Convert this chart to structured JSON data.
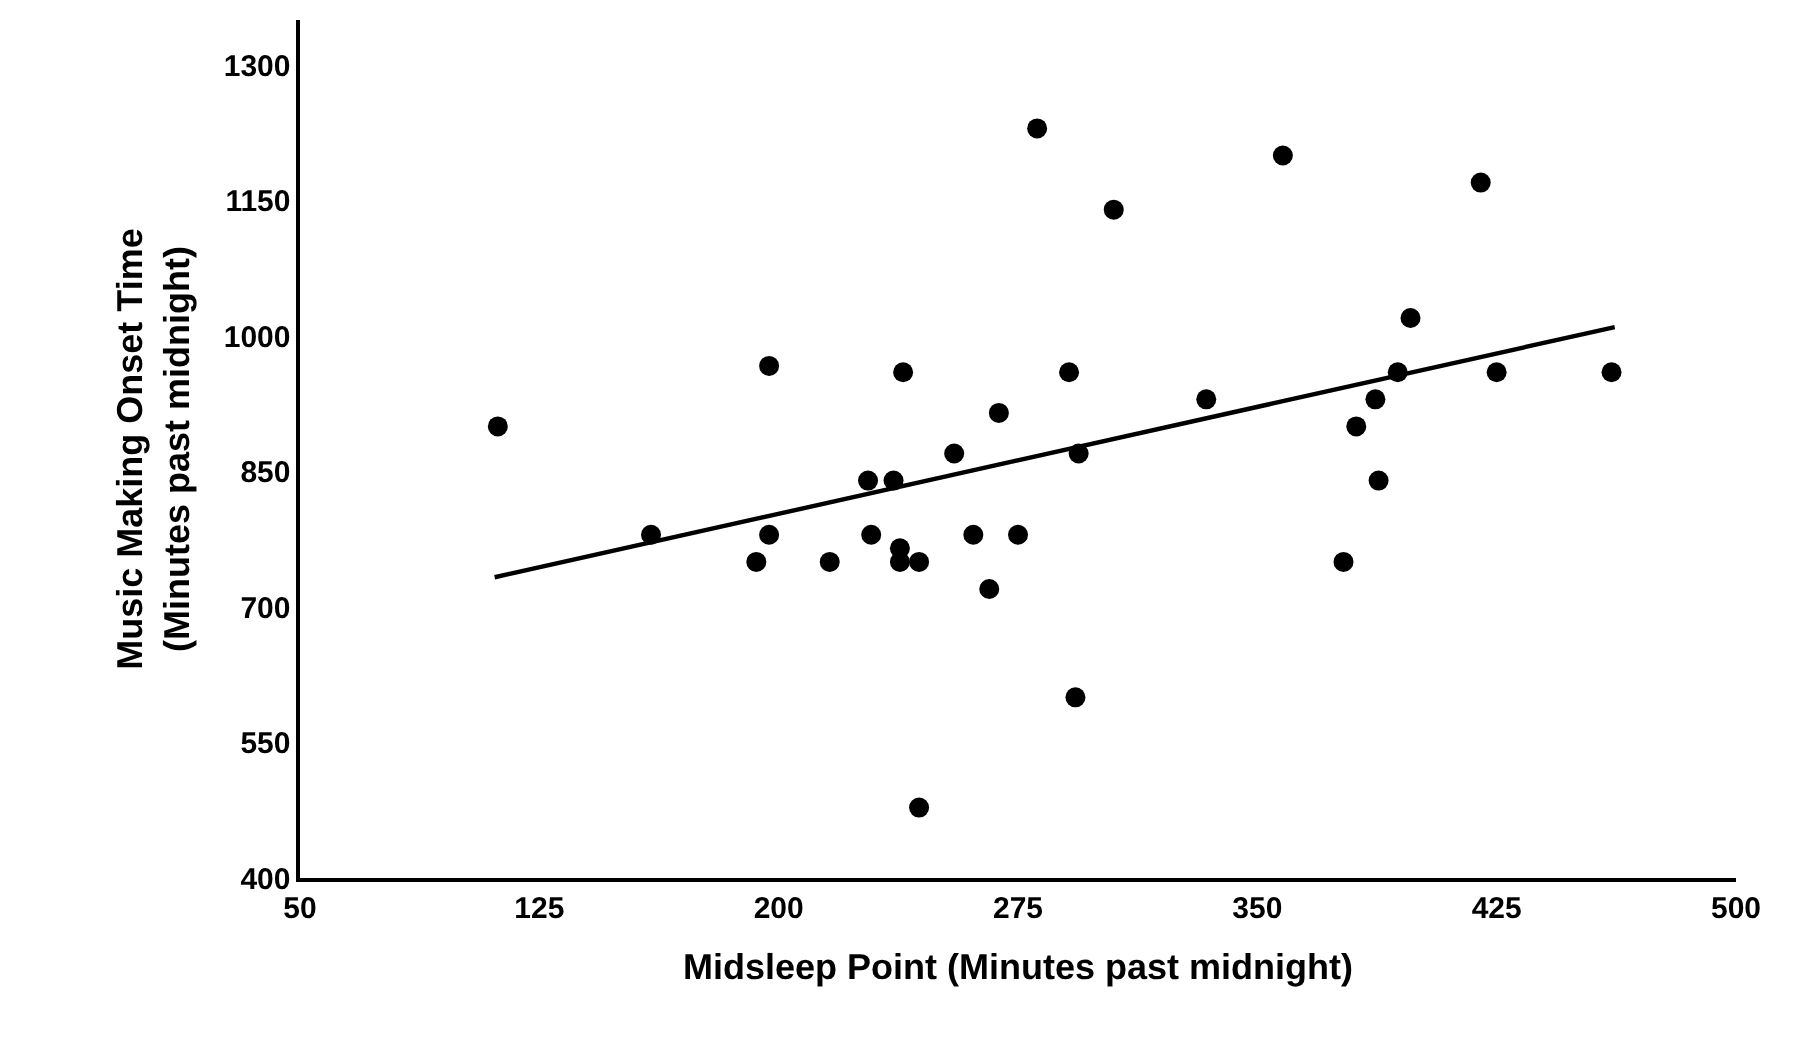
{
  "chart_data": {
    "type": "scatter",
    "xlabel": "Midsleep Point (Minutes past midnight)",
    "ylabel": "Music Making Onset Time (Minutes past midnight)",
    "xlim": [
      50,
      500
    ],
    "xticks": [
      50,
      125,
      200,
      275,
      350,
      425,
      500
    ],
    "ylim": [
      400,
      1350
    ],
    "yticks": [
      400,
      550,
      700,
      850,
      1000,
      1150,
      1300
    ],
    "marker": "circle",
    "series": [
      {
        "color": "#000000",
        "x": [
          112,
          160,
          197,
          193,
          197,
          216,
          228,
          236,
          229,
          238,
          238,
          244,
          239,
          244,
          255,
          261,
          266,
          269,
          275,
          281,
          305,
          291,
          294,
          293,
          334,
          358,
          377,
          381,
          387,
          388,
          394,
          398,
          420,
          425,
          461
        ],
        "values": [
          900,
          780,
          967,
          750,
          780,
          750,
          840,
          840,
          780,
          765,
          750,
          750,
          960,
          478,
          870,
          780,
          720,
          915,
          780,
          1230,
          1140,
          960,
          870,
          600,
          930,
          1200,
          750,
          900,
          930,
          840,
          960,
          1020,
          1170,
          960,
          960
        ]
      },
      {
        "type": "line",
        "color": "#000000",
        "x": [
          111,
          462
        ],
        "values": [
          733,
          1010
        ],
        "marker": "none",
        "line_style": "solid"
      }
    ]
  }
}
